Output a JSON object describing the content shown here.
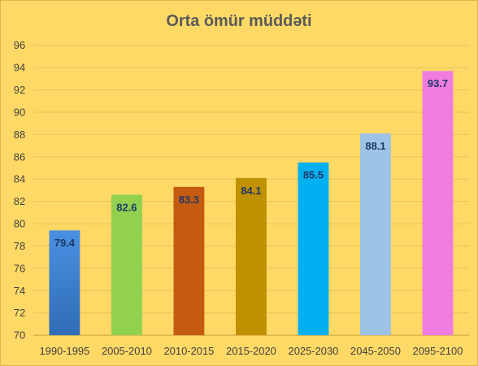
{
  "chart_data": {
    "type": "bar",
    "title": "Orta ömür müddəti",
    "xlabel": "",
    "ylabel": "",
    "categories": [
      "1990-1995",
      "2005-2010",
      "2010-2015",
      "2015-2020",
      "2025-2030",
      "2045-2050",
      "2095-2100"
    ],
    "values": [
      79.4,
      82.6,
      83.3,
      84.1,
      85.5,
      88.1,
      93.7
    ],
    "value_labels": [
      "79.4",
      "82.6",
      "83.3",
      "84.1",
      "85.5",
      "88.1",
      "93.7"
    ],
    "ylim": [
      70,
      96
    ],
    "yticks": [
      "70",
      "72",
      "74",
      "76",
      "78",
      "80",
      "82",
      "84",
      "86",
      "88",
      "90",
      "92",
      "94",
      "96"
    ],
    "grid": true,
    "legend": "none",
    "bar_colors": [
      "#3D7CC9",
      "#92D050",
      "#C55A11",
      "#BF9000",
      "#00B0F0",
      "#9DC3E6",
      "#F07CE0"
    ],
    "background": "#FFD966"
  }
}
